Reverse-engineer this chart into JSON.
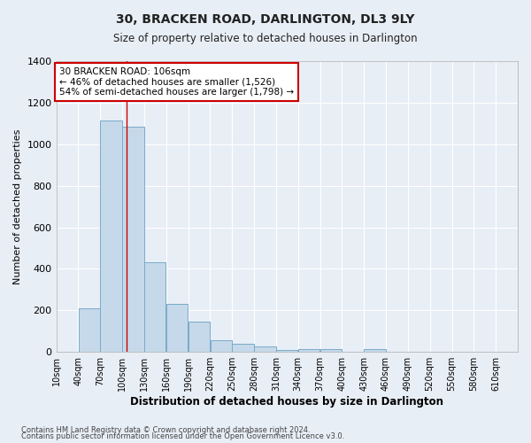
{
  "title": "30, BRACKEN ROAD, DARLINGTON, DL3 9LY",
  "subtitle": "Size of property relative to detached houses in Darlington",
  "xlabel": "Distribution of detached houses by size in Darlington",
  "ylabel": "Number of detached properties",
  "footnote1": "Contains HM Land Registry data © Crown copyright and database right 2024.",
  "footnote2": "Contains public sector information licensed under the Open Government Licence v3.0.",
  "bin_labels": [
    "10sqm",
    "40sqm",
    "70sqm",
    "100sqm",
    "130sqm",
    "160sqm",
    "190sqm",
    "220sqm",
    "250sqm",
    "280sqm",
    "310sqm",
    "340sqm",
    "370sqm",
    "400sqm",
    "430sqm",
    "460sqm",
    "490sqm",
    "520sqm",
    "550sqm",
    "580sqm",
    "610sqm"
  ],
  "bin_left_edges": [
    10,
    40,
    70,
    100,
    130,
    160,
    190,
    220,
    250,
    280,
    310,
    340,
    370,
    400,
    430,
    460,
    490,
    520,
    550,
    580,
    610
  ],
  "bar_heights": [
    0,
    210,
    1115,
    1085,
    430,
    230,
    145,
    58,
    38,
    25,
    10,
    15,
    15,
    0,
    15,
    0,
    0,
    0,
    0,
    0,
    0
  ],
  "bar_color": "#c5d9ea",
  "bar_edge_color": "#7aaac8",
  "background_color": "#e8eef6",
  "grid_color": "#ffffff",
  "red_line_x": 106,
  "annotation_line1": "30 BRACKEN ROAD: 106sqm",
  "annotation_line2": "← 46% of detached houses are smaller (1,526)",
  "annotation_line3": "54% of semi-detached houses are larger (1,798) →",
  "annotation_box_facecolor": "#ffffff",
  "annotation_box_edgecolor": "#cc0000",
  "ylim": [
    0,
    1400
  ],
  "yticks": [
    0,
    200,
    400,
    600,
    800,
    1000,
    1200,
    1400
  ],
  "bin_width": 30,
  "xlim_left": 10,
  "xlim_right": 640
}
